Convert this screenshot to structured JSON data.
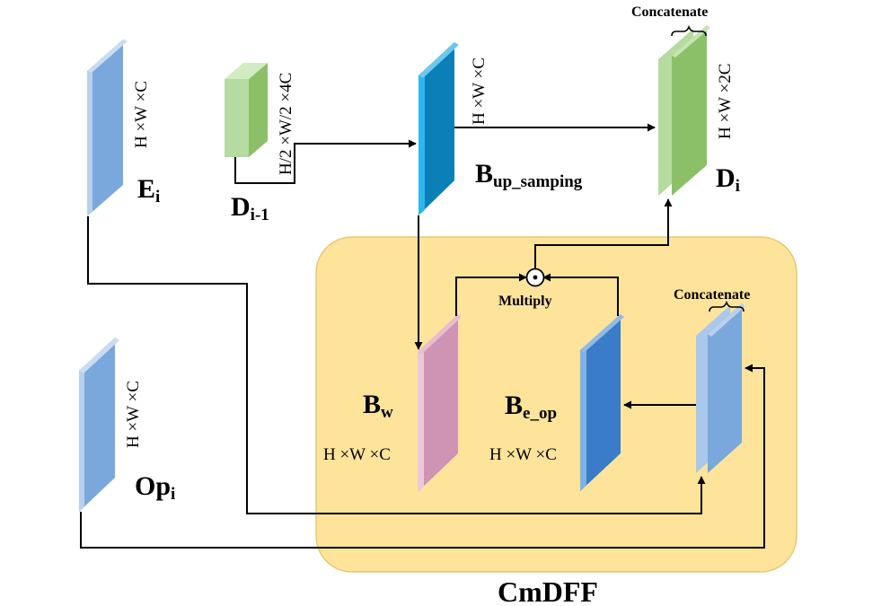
{
  "module": {
    "label": "CmDFF"
  },
  "blocks": {
    "e": {
      "base": "E",
      "sub": "i",
      "dim": "H ×W ×C"
    },
    "d_prev": {
      "base": "D",
      "sub": "i-1",
      "dim": "H/2 ×W/2 ×4C"
    },
    "b_up": {
      "base": "B",
      "sub": "up_samping",
      "dim": "H ×W ×C"
    },
    "d_out": {
      "base": "D",
      "sub": "i",
      "dim": "H ×W ×2C"
    },
    "op": {
      "base": "Op",
      "sub": "i",
      "dim": "H ×W ×C"
    },
    "b_w": {
      "base": "B",
      "sub": "w",
      "dim": "H ×W ×C"
    },
    "b_eop": {
      "base": "B",
      "sub": "e_op",
      "dim": "H ×W ×C"
    }
  },
  "ops": {
    "concat_top": "Concatenate",
    "concat_inner": "Concatenate",
    "multiply": "Multiply",
    "multiply_symbol": "⊙"
  },
  "colors": {
    "module_fill": "#fde49a",
    "module_stroke": "#e8c870",
    "blue_light": "#7aa8dc",
    "blue_mid": "#3a7cc8",
    "cyan": "#1a9ad6",
    "green_light": "#b5dba0",
    "green_mid": "#8cc068",
    "pink": "#cf93b3",
    "line": "#000000"
  }
}
